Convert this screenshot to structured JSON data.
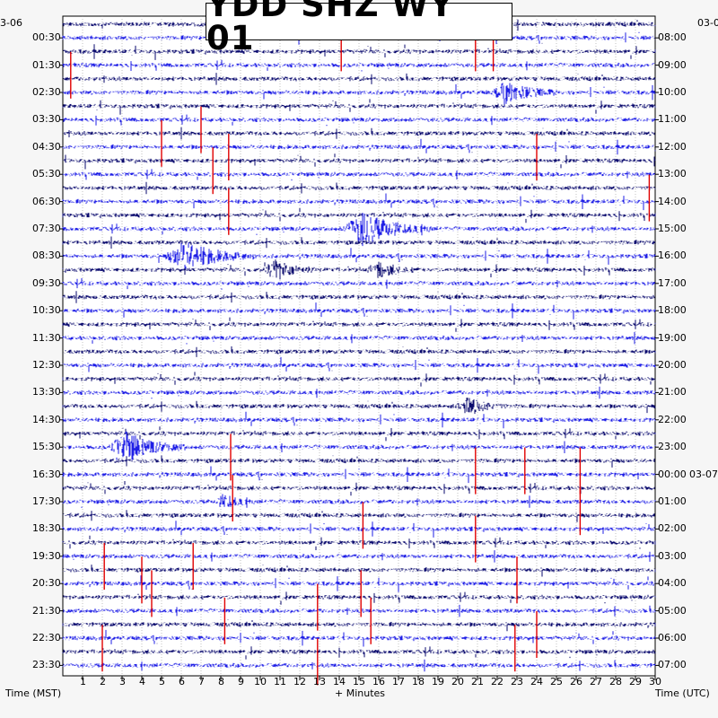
{
  "chart_data": {
    "type": "line",
    "title": "YDD SHZ WY 01",
    "xlabel": "+ Minutes",
    "left_axis_label": "Time (MST)",
    "right_axis_label": "Time (UTC)",
    "left_date": "3-06",
    "right_date_start": "03-0",
    "right_date_change": "03-07",
    "xlim": [
      0,
      30
    ],
    "x_ticks": [
      "1",
      "2",
      "3",
      "4",
      "5",
      "6",
      "7",
      "8",
      "9",
      "10",
      "11",
      "12",
      "13",
      "14",
      "15",
      "16",
      "17",
      "18",
      "19",
      "20",
      "21",
      "22",
      "23",
      "24",
      "25",
      "26",
      "27",
      "28",
      "29",
      "30"
    ],
    "left_ticks": [
      "00:30",
      "01:30",
      "02:30",
      "03:30",
      "04:30",
      "05:30",
      "06:30",
      "07:30",
      "08:30",
      "09:30",
      "10:30",
      "11:30",
      "12:30",
      "13:30",
      "14:30",
      "15:30",
      "16:30",
      "17:30",
      "18:30",
      "19:30",
      "20:30",
      "21:30",
      "22:30",
      "23:30"
    ],
    "right_ticks": [
      "08:00",
      "09:00",
      "10:00",
      "11:00",
      "12:00",
      "13:00",
      "14:00",
      "15:00",
      "16:00",
      "17:00",
      "18:00",
      "19:00",
      "20:00",
      "21:00",
      "22:00",
      "23:00",
      "00:00",
      "01:00",
      "02:00",
      "03:00",
      "04:00",
      "05:00",
      "06:00",
      "07:00"
    ],
    "trace_count": 48,
    "trace_colors": [
      "#0a0a6e",
      "#1e1ee6"
    ],
    "clip_color": "#e00000",
    "events": [
      {
        "row": 15,
        "minute": 15.2,
        "duration": 3.5,
        "amp": 2.2
      },
      {
        "row": 17,
        "minute": 6.2,
        "duration": 3.5,
        "amp": 2.0
      },
      {
        "row": 18,
        "minute": 10.8,
        "duration": 2.0,
        "amp": 1.3
      },
      {
        "row": 18,
        "minute": 16.0,
        "duration": 2.0,
        "amp": 1.0
      },
      {
        "row": 5,
        "minute": 22.5,
        "duration": 2.5,
        "amp": 1.5
      },
      {
        "row": 28,
        "minute": 20.5,
        "duration": 2.0,
        "amp": 1.2
      },
      {
        "row": 31,
        "minute": 3.2,
        "duration": 3.0,
        "amp": 2.0
      },
      {
        "row": 35,
        "minute": 8.2,
        "duration": 1.5,
        "amp": 1.0
      }
    ],
    "clips": [
      {
        "row": 2,
        "minute": 20.9
      },
      {
        "row": 2,
        "minute": 21.8
      },
      {
        "row": 2,
        "minute": 14.1
      },
      {
        "row": 4,
        "minute": 0.4
      },
      {
        "row": 8,
        "minute": 7.0
      },
      {
        "row": 9,
        "minute": 5.0
      },
      {
        "row": 10,
        "minute": 8.4
      },
      {
        "row": 10,
        "minute": 24.0
      },
      {
        "row": 11,
        "minute": 7.6
      },
      {
        "row": 13,
        "minute": 29.7
      },
      {
        "row": 14,
        "minute": 8.4
      },
      {
        "row": 32,
        "minute": 8.5
      },
      {
        "row": 33,
        "minute": 20.9
      },
      {
        "row": 33,
        "minute": 23.4
      },
      {
        "row": 33,
        "minute": 26.2
      },
      {
        "row": 35,
        "minute": 8.6
      },
      {
        "row": 36,
        "minute": 26.2
      },
      {
        "row": 37,
        "minute": 15.2
      },
      {
        "row": 38,
        "minute": 20.9
      },
      {
        "row": 40,
        "minute": 2.1
      },
      {
        "row": 40,
        "minute": 6.6
      },
      {
        "row": 41,
        "minute": 4.0
      },
      {
        "row": 41,
        "minute": 23.0
      },
      {
        "row": 42,
        "minute": 4.5
      },
      {
        "row": 42,
        "minute": 15.1
      },
      {
        "row": 43,
        "minute": 12.9
      },
      {
        "row": 44,
        "minute": 15.6
      },
      {
        "row": 44,
        "minute": 8.2
      },
      {
        "row": 45,
        "minute": 24.0
      },
      {
        "row": 46,
        "minute": 2.0
      },
      {
        "row": 46,
        "minute": 22.9
      },
      {
        "row": 47,
        "minute": 12.9
      }
    ]
  }
}
